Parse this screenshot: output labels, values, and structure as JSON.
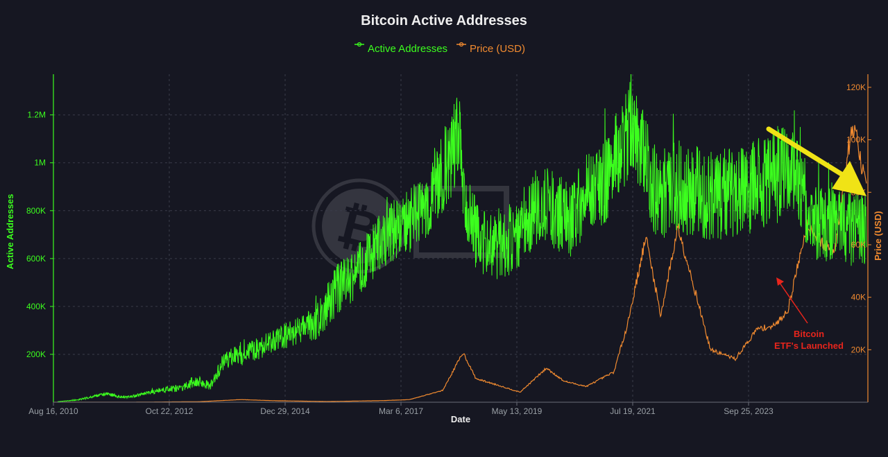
{
  "chart_data": {
    "type": "line",
    "title": "Bitcoin Active Addresses",
    "xlabel": "Date",
    "ylabel_left": "Active Addresses",
    "ylabel_right": "Price (USD)",
    "x_tick_labels": [
      "Aug 16, 2010",
      "Oct 22, 2012",
      "Dec 29, 2014",
      "Mar 6, 2017",
      "May 13, 2019",
      "Jul 19, 2021",
      "Sep 25, 2023"
    ],
    "y_left_ticks": [
      {
        "value": 200000,
        "label": "200K"
      },
      {
        "value": 400000,
        "label": "400K"
      },
      {
        "value": 600000,
        "label": "600K"
      },
      {
        "value": 800000,
        "label": "800K"
      },
      {
        "value": 1000000,
        "label": "1M"
      },
      {
        "value": 1200000,
        "label": "1.2M"
      }
    ],
    "y_right_ticks": [
      {
        "value": 20000,
        "label": "20K"
      },
      {
        "value": 40000,
        "label": "40K"
      },
      {
        "value": 60000,
        "label": "60K"
      },
      {
        "value": 80000,
        "label": "80K"
      },
      {
        "value": 100000,
        "label": "100K"
      },
      {
        "value": 120000,
        "label": "120K"
      }
    ],
    "x_range": [
      2010.55,
      2025.3
    ],
    "y_left_range": [
      0,
      1370000
    ],
    "y_right_range": [
      0,
      125000
    ],
    "grid": true,
    "legend_position": "top-center",
    "colors": {
      "active": "#3cff1e",
      "price": "#f28b30",
      "arrow": "#f0e316",
      "annotation": "#e8251c",
      "grid": "#3a3c4a",
      "text": "#9aa0a6",
      "title": "#eeeeee"
    },
    "series": [
      {
        "name": "Active Addresses",
        "axis": "left",
        "color": "#3cff1e",
        "x": [
          2010.62,
          2011.0,
          2011.5,
          2011.8,
          2012.0,
          2012.5,
          2012.9,
          2013.1,
          2013.4,
          2013.6,
          2013.8,
          2014.0,
          2014.5,
          2014.9,
          2015.3,
          2015.7,
          2016.0,
          2016.3,
          2016.6,
          2016.9,
          2017.2,
          2017.5,
          2017.7,
          2017.9,
          2018.0,
          2018.2,
          2018.5,
          2018.8,
          2019.0,
          2019.3,
          2019.6,
          2019.9,
          2020.2,
          2020.5,
          2020.8,
          2021.0,
          2021.2,
          2021.5,
          2021.8,
          2022.2,
          2022.5,
          2022.9,
          2023.3,
          2023.7,
          2023.9,
          2024.2,
          2024.4,
          2024.6,
          2024.9,
          2025.25
        ],
        "values": [
          2000,
          10000,
          35000,
          20000,
          25000,
          50000,
          60000,
          90000,
          70000,
          160000,
          190000,
          200000,
          250000,
          290000,
          330000,
          470000,
          530000,
          620000,
          700000,
          740000,
          800000,
          880000,
          1000000,
          1150000,
          850000,
          700000,
          640000,
          680000,
          720000,
          820000,
          800000,
          760000,
          880000,
          900000,
          1050000,
          1150000,
          1050000,
          850000,
          900000,
          880000,
          860000,
          880000,
          900000,
          960000,
          1000000,
          820000,
          720000,
          760000,
          740000,
          700000
        ],
        "spread": [
          0,
          3000,
          8000,
          5000,
          6000,
          12000,
          15000,
          25000,
          20000,
          35000,
          40000,
          45000,
          50000,
          60000,
          70000,
          110000,
          110000,
          120000,
          130000,
          140000,
          130000,
          170000,
          200000,
          180000,
          150000,
          150000,
          140000,
          150000,
          160000,
          170000,
          170000,
          160000,
          180000,
          180000,
          190000,
          200000,
          190000,
          190000,
          200000,
          190000,
          190000,
          190000,
          200000,
          210000,
          200000,
          170000,
          160000,
          170000,
          170000,
          160000
        ]
      },
      {
        "name": "Price (USD)",
        "axis": "right",
        "color": "#f28b30",
        "x": [
          2010.62,
          2012.0,
          2013.2,
          2013.95,
          2014.5,
          2015.5,
          2016.5,
          2017.0,
          2017.6,
          2017.97,
          2018.2,
          2018.6,
          2019.0,
          2019.48,
          2019.8,
          2020.2,
          2020.7,
          2020.95,
          2021.28,
          2021.55,
          2021.86,
          2022.2,
          2022.45,
          2022.9,
          2023.3,
          2023.6,
          2023.85,
          2024.2,
          2024.5,
          2024.7,
          2024.95,
          2025.05,
          2025.2,
          2025.28
        ],
        "values": [
          0,
          5,
          200,
          1000,
          600,
          250,
          600,
          1000,
          4500,
          19000,
          9000,
          6500,
          3800,
          13000,
          8000,
          6000,
          11500,
          30000,
          63000,
          33000,
          67000,
          40000,
          20000,
          16500,
          28000,
          29000,
          35000,
          68000,
          60000,
          58000,
          97000,
          106000,
          88000,
          84000
        ]
      }
    ],
    "annotations": [
      {
        "text_line1": "Bitcoin",
        "text_line2": "ETF's Launched",
        "color": "#e8251c"
      }
    ]
  }
}
